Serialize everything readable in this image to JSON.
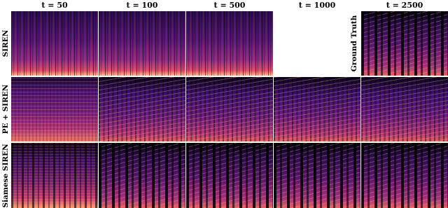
{
  "column_headers": [
    "t = 50",
    "t = 100",
    "t = 500",
    "t = 1000",
    "t = 2500"
  ],
  "row_labels": [
    "SIREN",
    "PE + SIREN",
    "Siamese SIREN"
  ],
  "ground_truth_label": "Ground Truth"
}
